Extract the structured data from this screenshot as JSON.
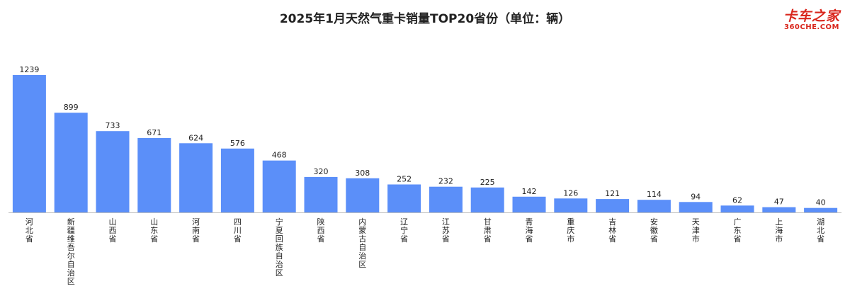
{
  "header": {
    "title": "2025年1月天然气重卡销量TOP20省份（单位：辆）"
  },
  "logo": {
    "main": "卡车之家",
    "sub": "360CHE.COM"
  },
  "colors": {
    "bar": "#5b8ff9",
    "axis": "#bfbfbf",
    "logo": "#d9261c"
  },
  "chart_data": {
    "type": "bar",
    "title": "2025年1月天然气重卡销量TOP20省份（单位：辆）",
    "categories": [
      "河北省",
      "新疆维吾尔自治区",
      "山西省",
      "山东省",
      "河南省",
      "四川省",
      "宁夏回族自治区",
      "陕西省",
      "内蒙古自治区",
      "辽宁省",
      "江苏省",
      "甘肃省",
      "青海省",
      "重庆市",
      "吉林省",
      "安徽省",
      "天津市",
      "广东省",
      "上海市",
      "湖北省"
    ],
    "values": [
      1239,
      899,
      733,
      671,
      624,
      576,
      468,
      320,
      308,
      252,
      232,
      225,
      142,
      126,
      121,
      114,
      94,
      62,
      47,
      40
    ],
    "ylim": [
      0,
      1239
    ],
    "xlabel": "",
    "ylabel": "",
    "grid": false,
    "legend": "none"
  }
}
